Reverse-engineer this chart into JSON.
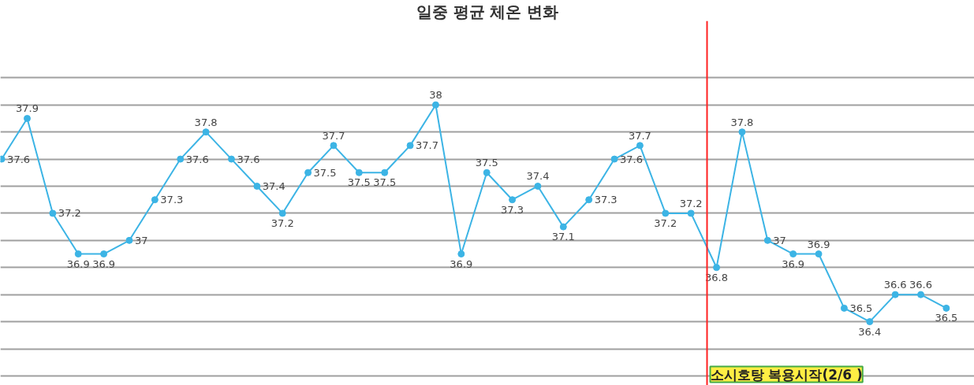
{
  "chart_data": {
    "type": "line",
    "title": "일중 평균 체온 변화",
    "categories": [
      null,
      null,
      null,
      null,
      null,
      null,
      null,
      null,
      null,
      null,
      null,
      null,
      null,
      null,
      null,
      null,
      null,
      null,
      null,
      null,
      null,
      null,
      null,
      null,
      null,
      null,
      null,
      null,
      null,
      null,
      null,
      null,
      null,
      null,
      null,
      null,
      null,
      null
    ],
    "series": [
      {
        "color": "#3cb4e5",
        "values": [
          37.6,
          37.9,
          37.2,
          36.9,
          36.9,
          37.0,
          37.3,
          37.6,
          37.8,
          37.6,
          37.4,
          37.2,
          37.5,
          37.7,
          37.5,
          37.5,
          37.7,
          38.0,
          36.9,
          37.5,
          37.3,
          37.4,
          37.1,
          37.3,
          37.6,
          37.7,
          37.2,
          37.2,
          36.8,
          37.8,
          37.0,
          36.9,
          36.9,
          36.5,
          36.4,
          36.6,
          36.6,
          36.5
        ]
      }
    ],
    "marker": "circle",
    "line_style": "solid",
    "data_labels": true,
    "grid": "y",
    "tick_labels": false,
    "ylim": [
      35.93,
      38.62
    ],
    "yticks": [
      36.0,
      36.2,
      36.4,
      36.6,
      36.8,
      37.0,
      37.2,
      37.4,
      37.6,
      37.8,
      38.0,
      38.2
    ],
    "annotations": [
      "소시호탕 복용시작(2/6 )"
    ]
  }
}
